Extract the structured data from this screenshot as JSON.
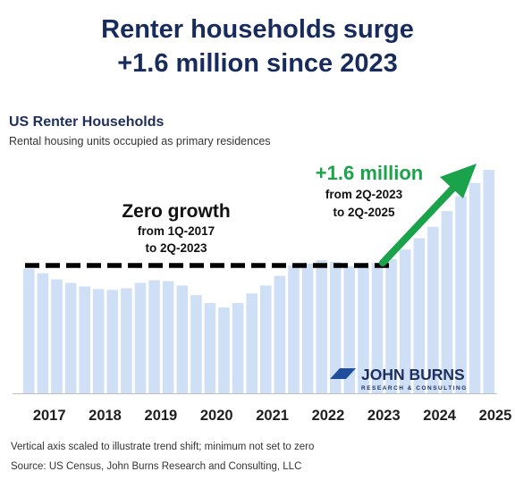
{
  "headline": {
    "line1": "Renter households surge",
    "line2": "+1.6 million since 2023"
  },
  "chart_data": {
    "type": "bar",
    "title": "US Renter Households",
    "subtitle": "Rental housing units occupied as primary residences",
    "xlabel": "",
    "ylabel": "",
    "x_tick_labels": [
      "2017",
      "2018",
      "2019",
      "2020",
      "2021",
      "2022",
      "2023",
      "2024",
      "2025"
    ],
    "categories": [
      "1Q-2017",
      "2Q-2017",
      "3Q-2017",
      "4Q-2017",
      "1Q-2018",
      "2Q-2018",
      "3Q-2018",
      "4Q-2018",
      "1Q-2019",
      "2Q-2019",
      "3Q-2019",
      "4Q-2019",
      "1Q-2020",
      "2Q-2020",
      "3Q-2020",
      "4Q-2020",
      "1Q-2021",
      "2Q-2021",
      "3Q-2021",
      "4Q-2021",
      "1Q-2022",
      "2Q-2022",
      "3Q-2022",
      "4Q-2022",
      "1Q-2023",
      "2Q-2023",
      "3Q-2023",
      "4Q-2023",
      "1Q-2024",
      "2Q-2024",
      "3Q-2024",
      "4Q-2024",
      "1Q-2025",
      "2Q-2025"
    ],
    "values": [
      142,
      137,
      130,
      126,
      122,
      119,
      118,
      120,
      126,
      129,
      128,
      123,
      112,
      103,
      98,
      103,
      114,
      123,
      134,
      146,
      148,
      152,
      150,
      145,
      146,
      149,
      153,
      164,
      177,
      190,
      208,
      225,
      240,
      255
    ],
    "y_axis_note": "Vertical axis scaled to illustrate trend shift; minimum not set to zero",
    "annotations": {
      "zero_growth_title": "Zero growth",
      "zero_growth_line1": "from 1Q-2017",
      "zero_growth_line2": "to 2Q-2023",
      "surge_title": "+1.6 million",
      "surge_line1": "from 2Q-2023",
      "surge_line2": "to 2Q-2025"
    },
    "bar_color": "#cfe0f6",
    "dashed_line_color": "#000000",
    "arrow_color": "#1aa34a"
  },
  "logo": {
    "name": "JOHN BURNS",
    "tagline": "RESEARCH & CONSULTING"
  },
  "footer": {
    "note": "Vertical axis scaled to illustrate trend shift; minimum not set to zero",
    "source": "Source: US Census, John Burns Research and Consulting, LLC"
  }
}
